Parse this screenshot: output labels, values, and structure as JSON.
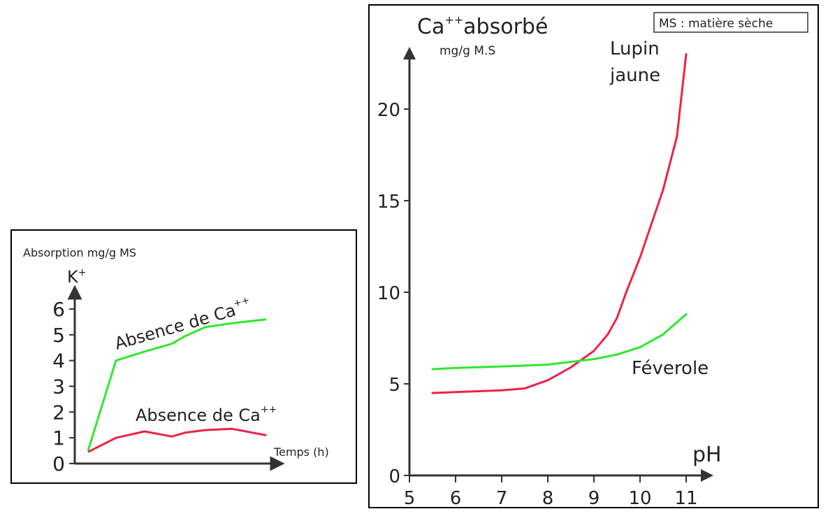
{
  "colors": {
    "green": "#2ee82e",
    "red": "#ee2244",
    "axis": "#333333"
  },
  "left_chart": {
    "top_label": "Absorption mg/g MS",
    "y_symbol": "K",
    "y_symbol_sup": "+",
    "x_label": "Temps (h)",
    "green_label": "Absence de Ca",
    "green_label_sup": "++",
    "red_label": "Absence de Ca",
    "red_label_sup": "++"
  },
  "right_chart": {
    "y_title": "Ca",
    "y_title_sup": "++",
    "y_title_rest": "absorbé",
    "y_unit": "mg/g M.S",
    "x_label": "pH",
    "legend_box": "MS : matière sèche",
    "lupin_label_line1": "Lupin",
    "lupin_label_line2": "jaune",
    "feverole_label": "Féverole"
  },
  "chart_data": [
    {
      "type": "line",
      "ylim": [
        0,
        6
      ],
      "yticks": [
        "0",
        "1",
        "2",
        "3",
        "4",
        "5",
        "6"
      ],
      "x": [
        0,
        1,
        2,
        3,
        4,
        5,
        6,
        7
      ],
      "series": [
        {
          "name": "Absence de Ca++",
          "color": "green",
          "values": [
            0.5,
            4.0,
            4.35,
            4.65,
            4.95,
            5.3,
            5.45,
            5.6
          ]
        },
        {
          "name": "Absence de Ca++",
          "color": "red",
          "values": [
            0.45,
            1.0,
            1.25,
            1.05,
            1.2,
            1.3,
            1.35,
            1.1
          ]
        }
      ]
    },
    {
      "type": "line",
      "xlim": [
        5,
        11.5
      ],
      "ylim": [
        0,
        23
      ],
      "xticks": [
        "5",
        "6",
        "7",
        "8",
        "9",
        "10",
        "11"
      ],
      "yticks": [
        "0",
        "5",
        "10",
        "15",
        "20"
      ],
      "series": [
        {
          "name": "Lupin jaune",
          "color": "red",
          "points": [
            [
              5.5,
              4.5
            ],
            [
              6.0,
              4.55
            ],
            [
              6.5,
              4.6
            ],
            [
              7.0,
              4.65
            ],
            [
              7.5,
              4.75
            ],
            [
              8.0,
              5.2
            ],
            [
              8.5,
              5.9
            ],
            [
              9.0,
              6.8
            ],
            [
              9.3,
              7.7
            ],
            [
              9.5,
              8.6
            ],
            [
              9.7,
              10.0
            ],
            [
              10.0,
              11.9
            ],
            [
              10.5,
              15.6
            ],
            [
              10.8,
              18.5
            ],
            [
              11.0,
              23.0
            ]
          ]
        },
        {
          "name": "Féverole",
          "color": "green",
          "points": [
            [
              5.5,
              5.8
            ],
            [
              6.0,
              5.87
            ],
            [
              7.0,
              5.95
            ],
            [
              8.0,
              6.05
            ],
            [
              9.0,
              6.35
            ],
            [
              9.5,
              6.6
            ],
            [
              10.0,
              7.0
            ],
            [
              10.5,
              7.7
            ],
            [
              11.0,
              8.8
            ]
          ]
        }
      ]
    }
  ]
}
